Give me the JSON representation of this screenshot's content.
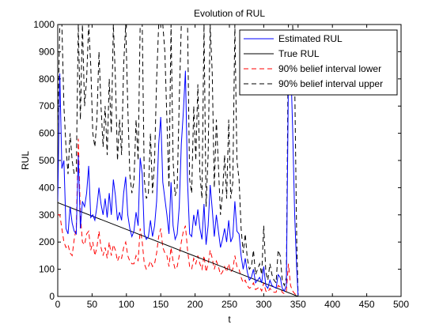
{
  "chart_data": {
    "type": "line",
    "title": "Evolution of RUL",
    "xlabel": "t",
    "ylabel": "RUL",
    "xlim": [
      0,
      500
    ],
    "ylim": [
      0,
      1000
    ],
    "xticks": [
      0,
      50,
      100,
      150,
      200,
      250,
      300,
      350,
      400,
      450,
      500
    ],
    "yticks": [
      0,
      100,
      200,
      300,
      400,
      500,
      600,
      700,
      800,
      900,
      1000
    ],
    "grid": false,
    "legend_position": "top-right",
    "series": [
      {
        "name": "Estimated RUL",
        "color": "#0000ff",
        "style": "solid",
        "x": [
          0,
          3,
          6,
          9,
          12,
          15,
          18,
          21,
          24,
          27,
          30,
          33,
          36,
          39,
          42,
          45,
          48,
          51,
          54,
          57,
          60,
          63,
          66,
          69,
          72,
          75,
          78,
          81,
          84,
          87,
          90,
          93,
          96,
          99,
          102,
          105,
          108,
          111,
          114,
          117,
          120,
          123,
          126,
          129,
          132,
          135,
          138,
          141,
          144,
          147,
          150,
          153,
          156,
          159,
          162,
          165,
          168,
          171,
          174,
          177,
          180,
          183,
          186,
          189,
          192,
          195,
          198,
          201,
          204,
          207,
          210,
          213,
          216,
          219,
          222,
          225,
          228,
          231,
          234,
          237,
          240,
          243,
          246,
          249,
          252,
          255,
          258,
          261,
          264,
          267,
          270,
          273,
          276,
          279,
          282,
          285,
          288,
          291,
          294,
          297,
          300,
          303,
          306,
          309,
          312,
          315,
          318,
          321,
          324,
          327,
          330,
          333,
          336,
          339,
          342,
          345,
          348,
          350
        ],
        "values": [
          350,
          820,
          470,
          500,
          250,
          230,
          330,
          270,
          240,
          230,
          520,
          250,
          350,
          330,
          380,
          480,
          290,
          300,
          280,
          330,
          400,
          340,
          300,
          360,
          290,
          380,
          300,
          430,
          370,
          280,
          310,
          280,
          380,
          440,
          300,
          250,
          220,
          240,
          310,
          260,
          510,
          450,
          230,
          210,
          220,
          280,
          220,
          260,
          350,
          560,
          660,
          420,
          360,
          300,
          230,
          420,
          260,
          210,
          230,
          330,
          560,
          680,
          830,
          420,
          230,
          220,
          300,
          260,
          320,
          250,
          210,
          340,
          190,
          260,
          410,
          320,
          220,
          300,
          240,
          180,
          210,
          250,
          200,
          280,
          200,
          220,
          350,
          240,
          230,
          150,
          100,
          140,
          90,
          60,
          70,
          100,
          50,
          60,
          70,
          50,
          110,
          40,
          30,
          60,
          40,
          35,
          30,
          80,
          70,
          30,
          20,
          40,
          800,
          880,
          620,
          300,
          100,
          5
        ]
      },
      {
        "name": "True RUL",
        "color": "#000000",
        "style": "solid",
        "x": [
          0,
          350
        ],
        "values": [
          345,
          0
        ]
      },
      {
        "name": "90% belief interval lower",
        "color": "#ff0000",
        "style": "dashed",
        "x": [
          0,
          3,
          6,
          9,
          12,
          15,
          18,
          21,
          24,
          27,
          30,
          33,
          36,
          39,
          42,
          45,
          48,
          51,
          54,
          57,
          60,
          63,
          66,
          69,
          72,
          75,
          78,
          81,
          84,
          87,
          90,
          93,
          96,
          99,
          102,
          105,
          108,
          111,
          114,
          117,
          120,
          123,
          126,
          129,
          132,
          135,
          138,
          141,
          144,
          147,
          150,
          153,
          156,
          159,
          162,
          165,
          168,
          171,
          174,
          177,
          180,
          183,
          186,
          189,
          192,
          195,
          198,
          201,
          204,
          207,
          210,
          213,
          216,
          219,
          222,
          225,
          228,
          231,
          234,
          237,
          240,
          243,
          246,
          249,
          252,
          255,
          258,
          261,
          264,
          267,
          270,
          273,
          276,
          279,
          282,
          285,
          288,
          291,
          294,
          297,
          300,
          303,
          306,
          309,
          312,
          315,
          318,
          321,
          324,
          327,
          330,
          333,
          336,
          339,
          342,
          345,
          348,
          350
        ],
        "values": [
          300,
          300,
          250,
          200,
          180,
          190,
          160,
          150,
          210,
          250,
          580,
          300,
          200,
          190,
          230,
          240,
          170,
          200,
          150,
          180,
          240,
          180,
          150,
          180,
          140,
          200,
          150,
          190,
          170,
          130,
          150,
          140,
          180,
          200,
          150,
          130,
          120,
          120,
          150,
          130,
          250,
          200,
          120,
          100,
          110,
          130,
          110,
          120,
          160,
          220,
          250,
          180,
          160,
          150,
          110,
          180,
          130,
          100,
          110,
          150,
          200,
          240,
          260,
          170,
          110,
          100,
          140,
          120,
          150,
          120,
          100,
          150,
          90,
          120,
          170,
          140,
          100,
          130,
          110,
          80,
          90,
          110,
          90,
          120,
          90,
          100,
          150,
          110,
          100,
          70,
          50,
          60,
          40,
          30,
          35,
          50,
          25,
          30,
          35,
          20,
          50,
          20,
          15,
          30,
          20,
          15,
          15,
          40,
          35,
          15,
          10,
          20,
          120,
          40,
          20,
          10,
          5,
          0
        ]
      },
      {
        "name": "90% belief interval upper",
        "color": "#000000",
        "style": "dashed",
        "x": [
          0,
          3,
          6,
          9,
          12,
          15,
          18,
          21,
          24,
          27,
          30,
          33,
          36,
          39,
          42,
          45,
          48,
          51,
          54,
          57,
          60,
          63,
          66,
          69,
          72,
          75,
          78,
          81,
          84,
          87,
          90,
          93,
          96,
          99,
          102,
          105,
          108,
          111,
          114,
          117,
          120,
          123,
          126,
          129,
          132,
          135,
          138,
          141,
          144,
          147,
          150,
          153,
          156,
          159,
          162,
          165,
          168,
          171,
          174,
          177,
          180,
          183,
          186,
          189,
          192,
          195,
          198,
          201,
          204,
          207,
          210,
          213,
          216,
          219,
          222,
          225,
          228,
          231,
          234,
          237,
          240,
          243,
          246,
          249,
          252,
          255,
          258,
          261,
          264,
          267,
          270,
          273,
          276,
          279,
          282,
          285,
          288,
          291,
          294,
          297,
          300,
          303,
          306,
          309,
          312,
          315,
          318,
          321,
          324,
          327,
          330,
          333,
          336,
          339,
          342,
          345,
          348,
          350
        ],
        "values": [
          620,
          1000,
          1000,
          700,
          550,
          450,
          600,
          500,
          450,
          460,
          1000,
          650,
          1000,
          700,
          800,
          1000,
          850,
          600,
          550,
          650,
          900,
          700,
          550,
          700,
          520,
          800,
          600,
          1000,
          800,
          500,
          650,
          520,
          850,
          1000,
          700,
          450,
          380,
          420,
          650,
          500,
          1000,
          1000,
          430,
          360,
          380,
          600,
          380,
          500,
          800,
          1000,
          1000,
          1000,
          900,
          650,
          400,
          1000,
          500,
          370,
          400,
          720,
          1000,
          1000,
          1000,
          1000,
          430,
          380,
          700,
          500,
          780,
          450,
          360,
          1000,
          330,
          520,
          1000,
          820,
          400,
          650,
          480,
          300,
          380,
          520,
          360,
          650,
          360,
          420,
          1000,
          500,
          430,
          250,
          160,
          230,
          140,
          100,
          110,
          170,
          80,
          100,
          120,
          80,
          260,
          90,
          60,
          120,
          80,
          60,
          50,
          170,
          150,
          60,
          40,
          70,
          1000,
          1000,
          1000,
          800,
          200,
          10
        ]
      }
    ]
  }
}
